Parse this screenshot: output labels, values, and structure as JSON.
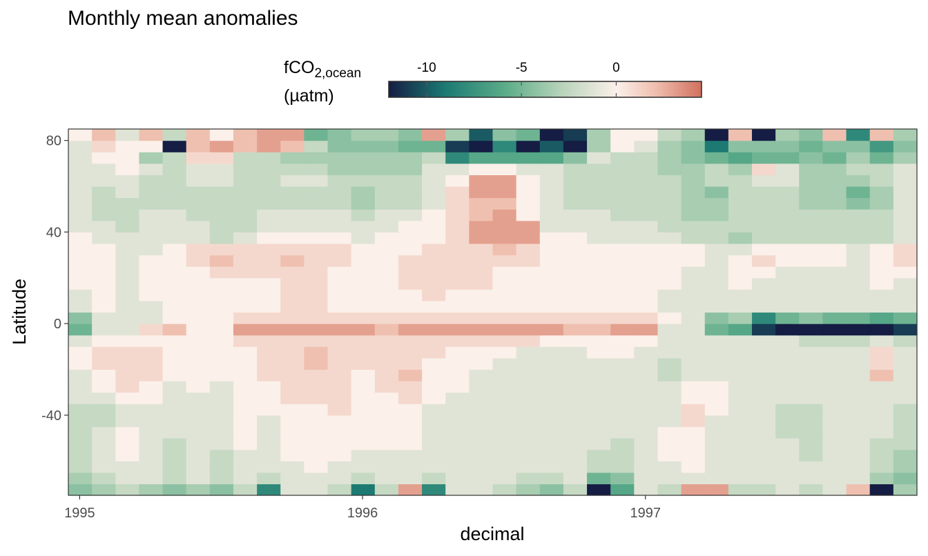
{
  "chart_data": {
    "type": "heatmap",
    "title": "Monthly mean anomalies",
    "xlabel": "decimal",
    "ylabel": "Latitude",
    "x_ticks": [
      "1995",
      "1996",
      "1997"
    ],
    "y_ticks": [
      "80",
      "40",
      "0",
      "-40"
    ],
    "xlim": [
      1994.96,
      1997.96
    ],
    "ylim": [
      -75,
      85
    ],
    "legend": {
      "title_main": "fCO",
      "title_sub": "2,ocean",
      "title_unit": "(µatm)",
      "ticks": [
        "-10",
        "-5",
        "0"
      ],
      "tick_values": [
        -10,
        -5,
        0
      ],
      "range": [
        -12,
        4.5
      ],
      "placement": "top"
    },
    "colors": {
      "min": "#151d44",
      "low": "#1c7a73",
      "mid_low": "#5fae8a",
      "pale_green": "#b7d3b9",
      "zero": "#fbf0ea",
      "pale_red": "#efc0b0",
      "max": "#d3705e"
    },
    "grid": false,
    "months": [
      "Jan 1995",
      "Feb 1995",
      "Mar 1995",
      "Apr 1995",
      "May 1995",
      "Jun 1995",
      "Jul 1995",
      "Aug 1995",
      "Sep 1995",
      "Oct 1995",
      "Nov 1995",
      "Dec 1995",
      "Jan 1996",
      "Feb 1996",
      "Mar 1996",
      "Apr 1996",
      "May 1996",
      "Jun 1996",
      "Jul 1996",
      "Aug 1996",
      "Sep 1996",
      "Oct 1996",
      "Nov 1996",
      "Dec 1996",
      "Jan 1997",
      "Feb 1997",
      "Mar 1997",
      "Apr 1997",
      "May 1997",
      "Jun 1997",
      "Jul 1997",
      "Aug 1997",
      "Sep 1997",
      "Oct 1997",
      "Nov 1997",
      "Dec 1997"
    ],
    "lat_bands": [
      -72.5,
      -67.5,
      -62.5,
      -57.5,
      -52.5,
      -47.5,
      -42.5,
      -37.5,
      -32.5,
      -27.5,
      -22.5,
      -17.5,
      -12.5,
      -7.5,
      -2.5,
      2.5,
      7.5,
      12.5,
      17.5,
      22.5,
      27.5,
      32.5,
      37.5,
      42.5,
      47.5,
      52.5,
      57.5,
      62.5,
      67.5,
      72.5,
      77.5,
      82.5
    ],
    "values": [
      [
        -4,
        -3,
        -2,
        -3,
        -4,
        -3,
        -4,
        -2,
        -8,
        -1,
        -1,
        -2,
        -9,
        -2,
        3,
        -8,
        -1,
        -1,
        -2,
        -3,
        -4,
        -2,
        -12,
        -6,
        -1,
        -2,
        3,
        3,
        -2,
        -2,
        -1,
        -2,
        -1,
        2,
        -12,
        -3
      ],
      [
        -3,
        -2,
        -1,
        -1,
        -2,
        -1,
        -2,
        -1,
        -2,
        -1,
        -1,
        -1,
        -2,
        -1,
        -1,
        -2,
        -1,
        -1,
        -1,
        -2,
        -2,
        -1,
        -5,
        -4,
        -1,
        -1,
        -1,
        -1,
        -1,
        -1,
        -1,
        -1,
        -1,
        -1,
        -3,
        -4
      ],
      [
        -2,
        -1,
        -1,
        -1,
        -2,
        -1,
        -2,
        -1,
        -1,
        -1,
        0,
        -1,
        -1,
        -1,
        -1,
        -1,
        -1,
        -1,
        -1,
        -1,
        -1,
        -1,
        -2,
        -2,
        -1,
        -1,
        0,
        -1,
        -1,
        -1,
        -1,
        -1,
        -1,
        -1,
        -2,
        -3
      ],
      [
        -2,
        -1,
        0,
        -1,
        -2,
        -1,
        -2,
        -1,
        -1,
        0,
        0,
        0,
        -1,
        -1,
        -1,
        -1,
        -1,
        -1,
        -1,
        -1,
        -1,
        -1,
        -2,
        -2,
        -1,
        0,
        0,
        -1,
        -1,
        -1,
        -1,
        -2,
        -1,
        -1,
        -2,
        -3
      ],
      [
        -2,
        -1,
        0,
        -1,
        -2,
        -1,
        -1,
        0,
        -1,
        0,
        0,
        0,
        0,
        0,
        0,
        -1,
        -1,
        -1,
        -1,
        -1,
        -1,
        -1,
        -1,
        -2,
        -1,
        0,
        0,
        -1,
        -1,
        -1,
        -1,
        -2,
        -1,
        -1,
        -2,
        -2
      ],
      [
        -2,
        -1,
        0,
        -1,
        -1,
        -1,
        -1,
        0,
        -1,
        0,
        0,
        0,
        0,
        0,
        0,
        -1,
        -1,
        -1,
        -1,
        -1,
        -1,
        -1,
        -1,
        -1,
        -1,
        0,
        0,
        -1,
        -1,
        -1,
        -2,
        -2,
        -1,
        -1,
        -1,
        -2
      ],
      [
        -2,
        -2,
        -1,
        -1,
        -1,
        -1,
        -1,
        0,
        -1,
        0,
        0,
        0,
        0,
        0,
        0,
        -1,
        -1,
        -1,
        -1,
        -1,
        -1,
        -1,
        -1,
        -1,
        -1,
        -1,
        1,
        -1,
        -1,
        -1,
        -2,
        -2,
        -1,
        -1,
        -1,
        -2
      ],
      [
        -2,
        -2,
        -1,
        -1,
        -1,
        -1,
        -1,
        0,
        0,
        0,
        0,
        1,
        0,
        0,
        0,
        -1,
        -1,
        -1,
        -1,
        -1,
        -1,
        -1,
        -1,
        -1,
        -1,
        -1,
        1,
        0,
        -1,
        -1,
        -2,
        -2,
        -1,
        -1,
        -1,
        -2
      ],
      [
        -1,
        -1,
        0,
        0,
        -1,
        -1,
        -1,
        0,
        0,
        1,
        1,
        1,
        0,
        0,
        1,
        0,
        -1,
        -1,
        -1,
        -1,
        -1,
        -1,
        -1,
        -1,
        -1,
        -1,
        0,
        0,
        -1,
        -1,
        -1,
        -1,
        -1,
        -1,
        -1,
        -1
      ],
      [
        -1,
        0,
        1,
        0,
        -1,
        0,
        -1,
        0,
        0,
        1,
        1,
        1,
        0,
        1,
        1,
        0,
        0,
        -1,
        -1,
        -1,
        -1,
        -1,
        -1,
        -1,
        -1,
        -1,
        0,
        0,
        -1,
        -1,
        -1,
        -1,
        -1,
        -1,
        -1,
        -1
      ],
      [
        -1,
        0,
        1,
        1,
        0,
        0,
        0,
        0,
        1,
        1,
        1,
        1,
        0,
        1,
        2,
        0,
        0,
        -1,
        -1,
        -1,
        -1,
        -1,
        -1,
        -1,
        -1,
        -2,
        -1,
        -1,
        -1,
        -1,
        -1,
        -1,
        -1,
        -1,
        2,
        -1
      ],
      [
        0,
        1,
        1,
        1,
        0,
        0,
        0,
        0,
        1,
        1,
        2,
        1,
        1,
        1,
        1,
        0,
        0,
        0,
        -1,
        -1,
        -1,
        -1,
        -1,
        -1,
        -1,
        -2,
        -1,
        -1,
        -1,
        -1,
        -1,
        -1,
        -1,
        -1,
        1,
        -1
      ],
      [
        0,
        1,
        1,
        1,
        0,
        0,
        0,
        0,
        1,
        1,
        2,
        1,
        1,
        1,
        1,
        1,
        0,
        0,
        0,
        -1,
        -1,
        -1,
        0,
        0,
        -1,
        -1,
        -1,
        -1,
        -1,
        -1,
        -1,
        -1,
        -1,
        -1,
        1,
        -1
      ],
      [
        -1,
        0,
        0,
        0,
        0,
        0,
        0,
        1,
        1,
        1,
        1,
        1,
        1,
        1,
        1,
        1,
        1,
        1,
        1,
        1,
        0,
        0,
        0,
        0,
        0,
        -1,
        -1,
        -1,
        -1,
        -1,
        -1,
        -2,
        -2,
        -2,
        -1,
        -2
      ],
      [
        -5,
        -1,
        -1,
        1,
        2,
        0,
        0,
        3,
        3,
        3,
        3,
        3,
        3,
        2,
        3,
        3,
        3,
        3,
        3,
        3,
        3,
        2,
        2,
        3,
        3,
        -1,
        -1,
        -5,
        -6,
        -11,
        -12,
        -12,
        -12,
        -12,
        -12,
        -11
      ],
      [
        -4,
        -1,
        -1,
        -1,
        0,
        0,
        0,
        1,
        1,
        1,
        1,
        1,
        1,
        1,
        1,
        1,
        1,
        1,
        1,
        1,
        1,
        1,
        1,
        1,
        1,
        0,
        -1,
        -4,
        -3,
        -8,
        -5,
        -4,
        -5,
        -5,
        -6,
        -5
      ],
      [
        -1,
        0,
        -1,
        -1,
        0,
        0,
        0,
        0,
        0,
        1,
        1,
        0,
        0,
        0,
        0,
        0,
        0,
        0,
        0,
        0,
        0,
        0,
        0,
        0,
        0,
        -1,
        -1,
        -1,
        -1,
        -1,
        -1,
        -1,
        -1,
        -1,
        -1,
        -1
      ],
      [
        -1,
        0,
        -1,
        0,
        0,
        0,
        0,
        0,
        0,
        1,
        1,
        0,
        0,
        0,
        0,
        1,
        0,
        0,
        0,
        0,
        0,
        0,
        0,
        0,
        0,
        -1,
        -1,
        -1,
        -1,
        -1,
        -1,
        -1,
        -1,
        -1,
        -1,
        -1
      ],
      [
        0,
        0,
        -1,
        0,
        0,
        0,
        0,
        0,
        0,
        1,
        1,
        0,
        0,
        0,
        1,
        1,
        1,
        1,
        0,
        0,
        0,
        0,
        0,
        0,
        0,
        0,
        -1,
        -1,
        0,
        -1,
        -1,
        -1,
        -1,
        -1,
        0,
        -1
      ],
      [
        0,
        0,
        -1,
        0,
        0,
        0,
        1,
        1,
        1,
        1,
        1,
        0,
        0,
        0,
        1,
        1,
        1,
        1,
        0,
        0,
        0,
        0,
        0,
        0,
        0,
        0,
        -1,
        -1,
        0,
        0,
        -1,
        -1,
        -1,
        -1,
        0,
        0
      ],
      [
        0,
        0,
        -1,
        0,
        0,
        1,
        2,
        1,
        1,
        2,
        1,
        1,
        0,
        0,
        1,
        1,
        1,
        1,
        1,
        1,
        0,
        0,
        0,
        0,
        0,
        0,
        0,
        -1,
        0,
        1,
        0,
        0,
        0,
        -1,
        0,
        1
      ],
      [
        0,
        0,
        -1,
        -1,
        0,
        1,
        1,
        1,
        1,
        1,
        1,
        1,
        0,
        0,
        0,
        1,
        1,
        1,
        2,
        1,
        0,
        0,
        0,
        0,
        0,
        0,
        0,
        -1,
        -1,
        0,
        0,
        0,
        0,
        -1,
        0,
        1
      ],
      [
        0,
        -1,
        -1,
        -1,
        -1,
        -1,
        -2,
        -1,
        0,
        0,
        0,
        0,
        -1,
        0,
        0,
        0,
        1,
        3,
        3,
        3,
        0,
        0,
        -1,
        -1,
        -1,
        -1,
        -2,
        -2,
        -3,
        -2,
        -2,
        -2,
        -2,
        -2,
        -2,
        -1
      ],
      [
        -1,
        -1,
        -2,
        -1,
        -1,
        -1,
        -2,
        -2,
        -1,
        -1,
        -1,
        -1,
        -1,
        -1,
        0,
        0,
        1,
        3,
        3,
        3,
        -1,
        -1,
        -1,
        -1,
        -1,
        -2,
        -2,
        -2,
        -2,
        -2,
        -2,
        -2,
        -2,
        -2,
        -2,
        -1
      ],
      [
        -1,
        -2,
        -2,
        -1,
        -1,
        -2,
        -2,
        -2,
        -1,
        -1,
        -1,
        -1,
        -2,
        -1,
        -1,
        0,
        1,
        2,
        3,
        0,
        -1,
        -1,
        -1,
        -2,
        -2,
        -2,
        -3,
        -3,
        -2,
        -2,
        -2,
        -2,
        -2,
        -2,
        -2,
        -1
      ],
      [
        -1,
        -2,
        -2,
        -2,
        -2,
        -2,
        -2,
        -2,
        -2,
        -2,
        -2,
        -2,
        -3,
        -2,
        -2,
        -1,
        1,
        2,
        2,
        0,
        -1,
        -2,
        -2,
        -2,
        -2,
        -2,
        -3,
        -3,
        -2,
        -2,
        -2,
        -3,
        -3,
        -4,
        -3,
        -1
      ],
      [
        -1,
        -2,
        -1,
        -2,
        -2,
        -2,
        -2,
        -2,
        -2,
        -2,
        -2,
        -2,
        -3,
        -2,
        -2,
        -1,
        1,
        3,
        3,
        0,
        -1,
        -2,
        -2,
        -2,
        -2,
        -2,
        -3,
        -4,
        -2,
        -2,
        -2,
        -3,
        -3,
        -5,
        -3,
        -1
      ],
      [
        -1,
        -1,
        -1,
        -2,
        -2,
        -1,
        -1,
        -2,
        -2,
        -1,
        -1,
        -2,
        -2,
        -2,
        -2,
        -1,
        0,
        3,
        3,
        0,
        -1,
        -2,
        -2,
        -2,
        -2,
        -2,
        -3,
        -2,
        -2,
        -1,
        -1,
        -3,
        -3,
        -3,
        -2,
        -1
      ],
      [
        -1,
        -1,
        0,
        -1,
        -2,
        -1,
        -1,
        -2,
        -2,
        -2,
        -2,
        -3,
        -3,
        -3,
        -3,
        -1,
        -1,
        0,
        0,
        -1,
        -1,
        -2,
        -2,
        -2,
        -2,
        -3,
        -3,
        -2,
        -3,
        1,
        -1,
        -3,
        -3,
        -2,
        -2,
        -1
      ],
      [
        -1,
        0,
        0,
        -3,
        -2,
        1,
        1,
        -2,
        -2,
        -3,
        -3,
        -3,
        -3,
        -3,
        -3,
        -2,
        -8,
        -6,
        -6,
        -6,
        -6,
        -4,
        -1,
        -2,
        -2,
        -3,
        -4,
        -5,
        -6,
        -5,
        -5,
        -4,
        -5,
        -3,
        -5,
        -3
      ],
      [
        -1,
        1,
        0,
        0,
        -12,
        2,
        3,
        2,
        3,
        2,
        -2,
        -4,
        -4,
        -4,
        -5,
        -5,
        -11,
        -12,
        -8,
        -12,
        -10,
        -12,
        -3,
        0,
        -1,
        -3,
        -4,
        -9,
        -4,
        -4,
        -4,
        -5,
        -4,
        -4,
        -7,
        -4
      ],
      [
        0,
        2,
        -1,
        2,
        -2,
        2,
        0,
        2,
        3,
        3,
        -5,
        -4,
        -3,
        -3,
        -4,
        3,
        -3,
        -10,
        -4,
        -5,
        -12,
        -11,
        -3,
        0,
        0,
        -2,
        -3,
        -12,
        2,
        -12,
        -3,
        -4,
        2,
        -8,
        2,
        -3
      ]
    ]
  }
}
